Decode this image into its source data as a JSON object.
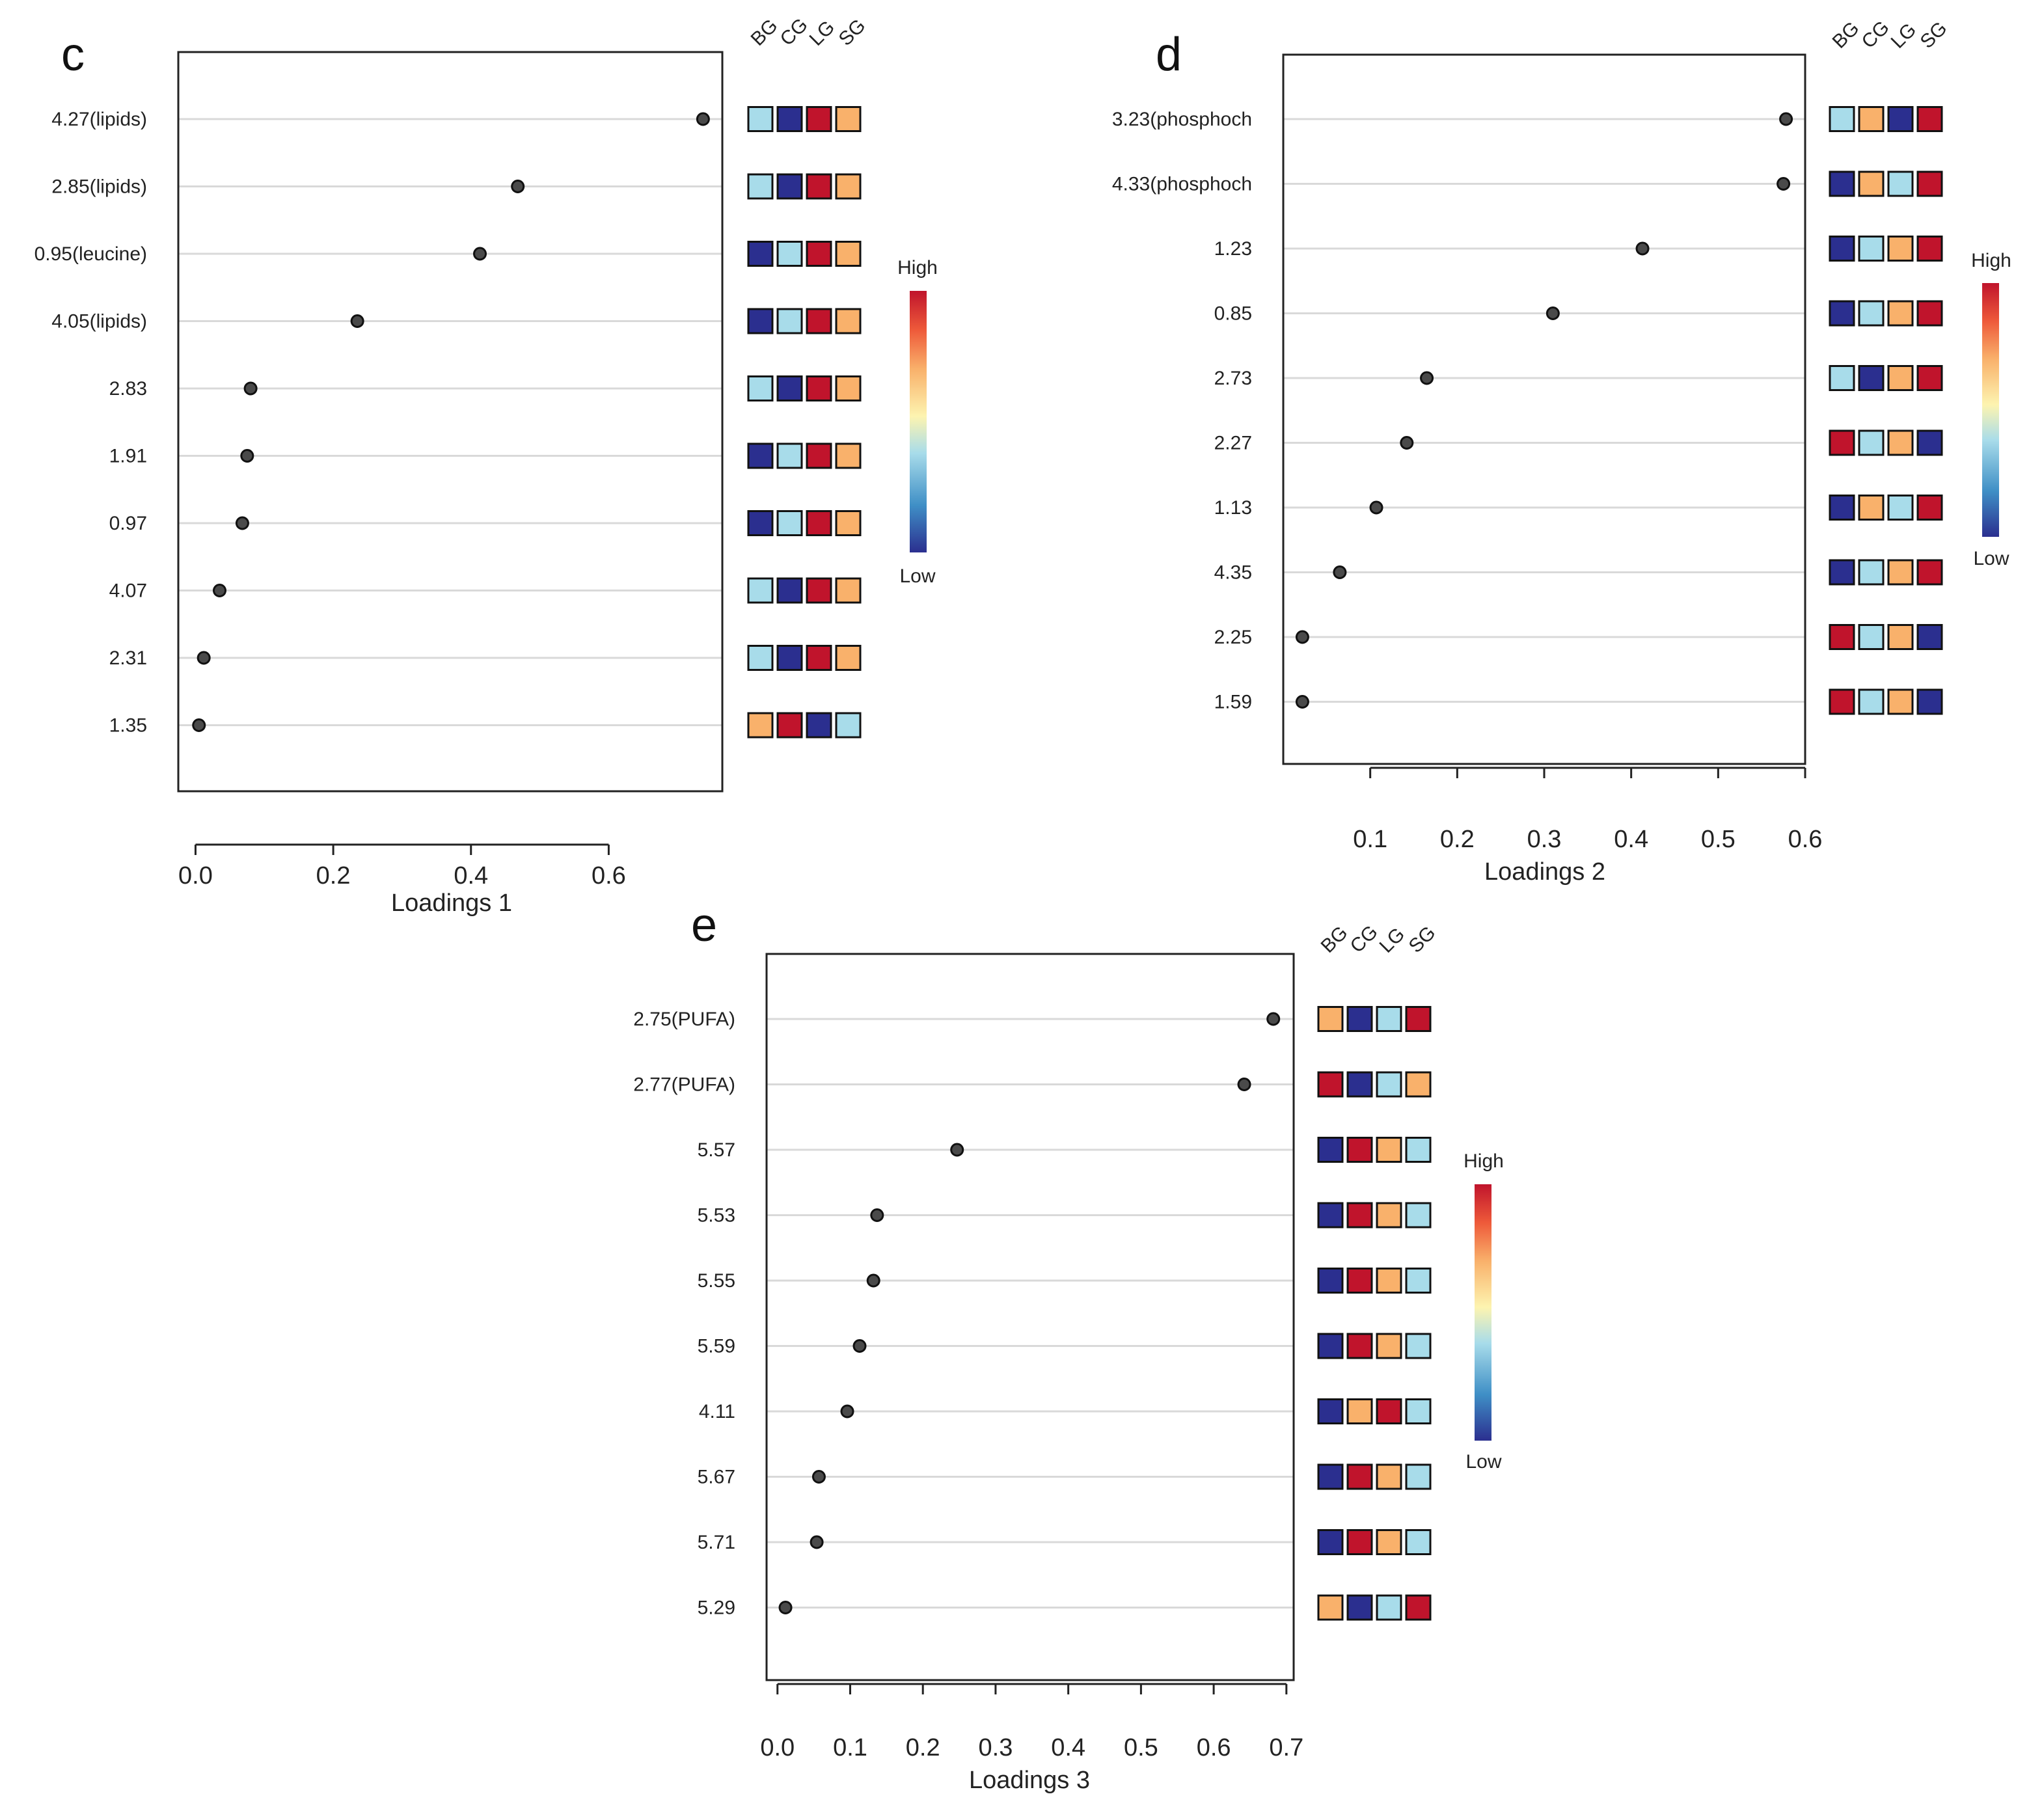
{
  "colors": {
    "BG_low": "#2b2f8f",
    "light_blue": "#a8dcea",
    "orange": "#f9b16b",
    "red": "#c0142c",
    "point": "#4a4a4a",
    "grid": "#d9d9d9"
  },
  "chart_data": [
    {
      "type": "scatter",
      "panel": "c",
      "xlabel": "Loadings 1",
      "xlim": [
        -0.025,
        0.765
      ],
      "xticks": [
        "0.0",
        "0.2",
        "0.4",
        "0.6"
      ],
      "xtick_values": [
        0.0,
        0.2,
        0.4,
        0.6
      ],
      "groups": [
        "BG",
        "CG",
        "LG",
        "SG"
      ],
      "legend": {
        "high": "High",
        "low": "Low"
      },
      "rows": [
        {
          "label": "4.27(lipids)",
          "value": 0.737,
          "colors": [
            "light_blue",
            "BG_low",
            "red",
            "orange"
          ]
        },
        {
          "label": "2.85(lipids)",
          "value": 0.468,
          "colors": [
            "light_blue",
            "BG_low",
            "red",
            "orange"
          ]
        },
        {
          "label": "0.95(leucine)",
          "value": 0.413,
          "colors": [
            "BG_low",
            "light_blue",
            "red",
            "orange"
          ]
        },
        {
          "label": "4.05(lipids)",
          "value": 0.235,
          "colors": [
            "BG_low",
            "light_blue",
            "red",
            "orange"
          ]
        },
        {
          "label": "2.83",
          "value": 0.08,
          "colors": [
            "light_blue",
            "BG_low",
            "red",
            "orange"
          ]
        },
        {
          "label": "1.91",
          "value": 0.075,
          "colors": [
            "BG_low",
            "light_blue",
            "red",
            "orange"
          ]
        },
        {
          "label": "0.97",
          "value": 0.068,
          "colors": [
            "BG_low",
            "light_blue",
            "red",
            "orange"
          ]
        },
        {
          "label": "4.07",
          "value": 0.035,
          "colors": [
            "light_blue",
            "BG_low",
            "red",
            "orange"
          ]
        },
        {
          "label": "2.31",
          "value": 0.012,
          "colors": [
            "light_blue",
            "BG_low",
            "red",
            "orange"
          ]
        },
        {
          "label": "1.35",
          "value": 0.005,
          "colors": [
            "orange",
            "red",
            "BG_low",
            "light_blue"
          ]
        }
      ]
    },
    {
      "type": "scatter",
      "panel": "d",
      "xlabel": "Loadings 2",
      "xlim": [
        0.0,
        0.6
      ],
      "xticks": [
        "0.1",
        "0.2",
        "0.3",
        "0.4",
        "0.5",
        "0.6"
      ],
      "xtick_values": [
        0.1,
        0.2,
        0.3,
        0.4,
        0.5,
        0.6
      ],
      "groups": [
        "BG",
        "CG",
        "LG",
        "SG"
      ],
      "legend": {
        "high": "High",
        "low": "Low"
      },
      "rows": [
        {
          "label": "3.23(phosphoch",
          "value": 0.578,
          "colors": [
            "light_blue",
            "orange",
            "BG_low",
            "red"
          ]
        },
        {
          "label": "4.33(phosphoch",
          "value": 0.575,
          "colors": [
            "BG_low",
            "orange",
            "light_blue",
            "red"
          ]
        },
        {
          "label": "1.23",
          "value": 0.413,
          "colors": [
            "BG_low",
            "light_blue",
            "orange",
            "red"
          ]
        },
        {
          "label": "0.85",
          "value": 0.31,
          "colors": [
            "BG_low",
            "light_blue",
            "orange",
            "red"
          ]
        },
        {
          "label": "2.73",
          "value": 0.165,
          "colors": [
            "light_blue",
            "BG_low",
            "orange",
            "red"
          ]
        },
        {
          "label": "2.27",
          "value": 0.142,
          "colors": [
            "red",
            "light_blue",
            "orange",
            "BG_low"
          ]
        },
        {
          "label": "1.13",
          "value": 0.107,
          "colors": [
            "BG_low",
            "orange",
            "light_blue",
            "red"
          ]
        },
        {
          "label": "4.35",
          "value": 0.065,
          "colors": [
            "BG_low",
            "light_blue",
            "orange",
            "red"
          ]
        },
        {
          "label": "2.25",
          "value": 0.022,
          "colors": [
            "red",
            "light_blue",
            "orange",
            "BG_low"
          ]
        },
        {
          "label": "1.59",
          "value": 0.022,
          "colors": [
            "red",
            "light_blue",
            "orange",
            "BG_low"
          ]
        }
      ]
    },
    {
      "type": "scatter",
      "panel": "e",
      "xlabel": "Loadings 3",
      "xlim": [
        -0.015,
        0.71
      ],
      "xticks": [
        "0.0",
        "0.1",
        "0.2",
        "0.3",
        "0.4",
        "0.5",
        "0.6",
        "0.7"
      ],
      "xtick_values": [
        0.0,
        0.1,
        0.2,
        0.3,
        0.4,
        0.5,
        0.6,
        0.7
      ],
      "groups": [
        "BG",
        "CG",
        "LG",
        "SG"
      ],
      "legend": {
        "high": "High",
        "low": "Low"
      },
      "rows": [
        {
          "label": "2.75(PUFA)",
          "value": 0.682,
          "colors": [
            "orange",
            "BG_low",
            "light_blue",
            "red"
          ]
        },
        {
          "label": "2.77(PUFA)",
          "value": 0.642,
          "colors": [
            "red",
            "BG_low",
            "light_blue",
            "orange"
          ]
        },
        {
          "label": "5.57",
          "value": 0.247,
          "colors": [
            "BG_low",
            "red",
            "orange",
            "light_blue"
          ]
        },
        {
          "label": "5.53",
          "value": 0.137,
          "colors": [
            "BG_low",
            "red",
            "orange",
            "light_blue"
          ]
        },
        {
          "label": "5.55",
          "value": 0.132,
          "colors": [
            "BG_low",
            "red",
            "orange",
            "light_blue"
          ]
        },
        {
          "label": "5.59",
          "value": 0.113,
          "colors": [
            "BG_low",
            "red",
            "orange",
            "light_blue"
          ]
        },
        {
          "label": "4.11",
          "value": 0.096,
          "colors": [
            "BG_low",
            "orange",
            "red",
            "light_blue"
          ]
        },
        {
          "label": "5.67",
          "value": 0.057,
          "colors": [
            "BG_low",
            "red",
            "orange",
            "light_blue"
          ]
        },
        {
          "label": "5.71",
          "value": 0.054,
          "colors": [
            "BG_low",
            "red",
            "orange",
            "light_blue"
          ]
        },
        {
          "label": "5.29",
          "value": 0.011,
          "colors": [
            "orange",
            "BG_low",
            "light_blue",
            "red"
          ]
        }
      ]
    }
  ]
}
